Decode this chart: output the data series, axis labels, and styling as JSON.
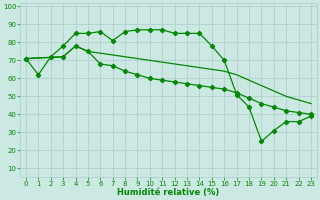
{
  "xlabel": "Humidité relative (%)",
  "bg_color": "#cce8e2",
  "grid_color": "#aacccc",
  "line_color": "#008800",
  "xlim": [
    -0.5,
    23.5
  ],
  "ylim": [
    5,
    102
  ],
  "xticks": [
    0,
    1,
    2,
    3,
    4,
    5,
    6,
    7,
    8,
    9,
    10,
    11,
    12,
    13,
    14,
    15,
    16,
    17,
    18,
    19,
    20,
    21,
    22,
    23
  ],
  "yticks": [
    10,
    20,
    30,
    40,
    50,
    60,
    70,
    80,
    90,
    100
  ],
  "curve1_x": [
    0,
    1,
    2,
    3,
    4,
    5,
    6,
    7,
    8,
    9,
    10,
    11,
    12,
    13,
    14,
    15,
    16,
    17,
    18,
    19,
    20,
    21,
    22,
    23
  ],
  "curve1_y": [
    71,
    62,
    72,
    78,
    85,
    85,
    86,
    81,
    86,
    87,
    87,
    87,
    85,
    85,
    85,
    78,
    70,
    51,
    44,
    25,
    31,
    36,
    36,
    39
  ],
  "curve2_x": [
    0,
    3,
    4,
    5,
    6,
    7,
    8,
    9,
    10,
    11,
    12,
    13,
    14,
    15,
    16,
    17,
    18,
    19,
    20,
    21,
    22,
    23
  ],
  "curve2_y": [
    71,
    72,
    78,
    75,
    68,
    67,
    64,
    62,
    60,
    59,
    58,
    57,
    56,
    55,
    54,
    52,
    49,
    46,
    44,
    42,
    41,
    40
  ],
  "curve3_x": [
    0,
    3,
    4,
    5,
    6,
    7,
    8,
    9,
    10,
    11,
    12,
    13,
    14,
    15,
    16,
    17,
    18,
    19,
    20,
    21,
    22,
    23
  ],
  "curve3_y": [
    71,
    72,
    78,
    75,
    74,
    73,
    72,
    71,
    70,
    69,
    68,
    67,
    66,
    65,
    64,
    62,
    59,
    56,
    53,
    50,
    48,
    46
  ]
}
